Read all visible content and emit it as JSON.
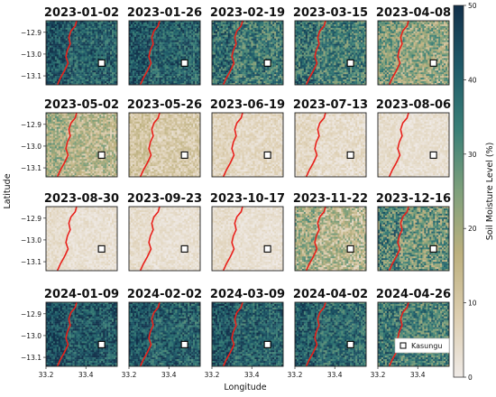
{
  "chart_data": {
    "type": "heatmap",
    "panels": [
      {
        "date": "2023-01-02",
        "mean_moisture": 40,
        "variability": 10
      },
      {
        "date": "2023-01-26",
        "mean_moisture": 40,
        "variability": 10
      },
      {
        "date": "2023-02-19",
        "mean_moisture": 34,
        "variability": 12
      },
      {
        "date": "2023-03-15",
        "mean_moisture": 33,
        "variability": 12
      },
      {
        "date": "2023-04-08",
        "mean_moisture": 22,
        "variability": 12
      },
      {
        "date": "2023-05-02",
        "mean_moisture": 16,
        "variability": 10
      },
      {
        "date": "2023-05-26",
        "mean_moisture": 9,
        "variability": 6
      },
      {
        "date": "2023-06-19",
        "mean_moisture": 5,
        "variability": 4
      },
      {
        "date": "2023-07-13",
        "mean_moisture": 4,
        "variability": 4
      },
      {
        "date": "2023-08-06",
        "mean_moisture": 3,
        "variability": 3
      },
      {
        "date": "2023-08-30",
        "mean_moisture": 3,
        "variability": 3
      },
      {
        "date": "2023-09-23",
        "mean_moisture": 3,
        "variability": 3
      },
      {
        "date": "2023-10-17",
        "mean_moisture": 3,
        "variability": 3
      },
      {
        "date": "2023-11-22",
        "mean_moisture": 16,
        "variability": 12
      },
      {
        "date": "2023-12-16",
        "mean_moisture": 27,
        "variability": 14
      },
      {
        "date": "2024-01-09",
        "mean_moisture": 42,
        "variability": 10
      },
      {
        "date": "2024-02-02",
        "mean_moisture": 40,
        "variability": 10
      },
      {
        "date": "2024-03-09",
        "mean_moisture": 40,
        "variability": 10
      },
      {
        "date": "2024-04-02",
        "mean_moisture": 38,
        "variability": 10
      },
      {
        "date": "2024-04-26",
        "mean_moisture": 32,
        "variability": 12
      }
    ],
    "xlabel": "Longitude",
    "ylabel": "Latitude",
    "xticks": [
      "33.2",
      "33.4"
    ],
    "yticks": [
      "−12.9",
      "−13.0",
      "−13.1"
    ],
    "colorbar": {
      "label": "Soil Moisture Level (%)",
      "min": 0,
      "max": 50,
      "ticks": [
        "0",
        "10",
        "20",
        "30",
        "40",
        "50"
      ],
      "colors": [
        "#efeae6",
        "#dccdaf",
        "#bcb07e",
        "#7ea07b",
        "#3a7f77",
        "#1f5a69",
        "#12304a"
      ]
    },
    "legend": {
      "label": "Kasungu",
      "marker": "white-square",
      "position": "lower-right"
    },
    "boundary_color": "#e8211b",
    "grid": false
  }
}
